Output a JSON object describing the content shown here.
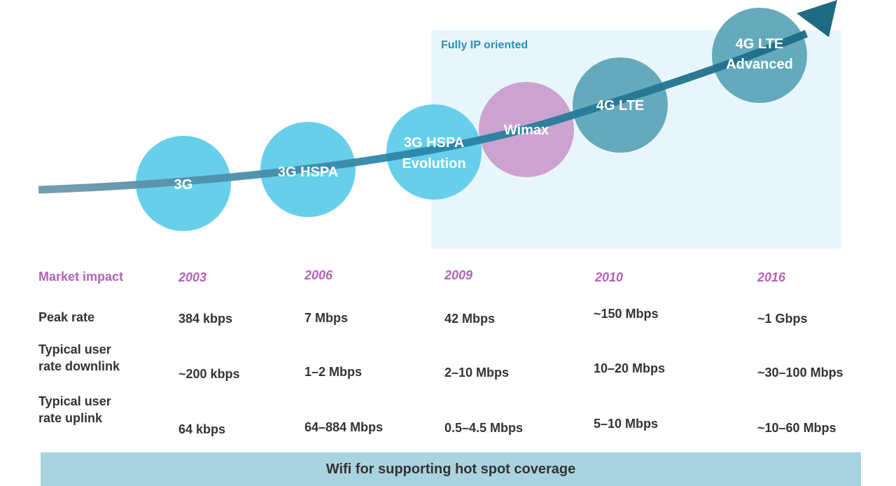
{
  "ip_region": {
    "label": "Fully IP oriented"
  },
  "nodes": [
    {
      "id": "3g",
      "lines": [
        "3G"
      ],
      "color": "#5ccbea"
    },
    {
      "id": "3g-hspa",
      "lines": [
        "3G HSPA"
      ],
      "color": "#5ccbea"
    },
    {
      "id": "3g-hspa-evolution",
      "lines": [
        "3G HSPA",
        "Evolution"
      ],
      "color": "#5ccbea"
    },
    {
      "id": "wimax",
      "lines": [
        "Wimax"
      ],
      "color": "#c99ccc"
    },
    {
      "id": "4g-lte",
      "lines": [
        "4G LTE"
      ],
      "color": "#5aa4b7"
    },
    {
      "id": "4g-lte-advanced",
      "lines": [
        "4G LTE",
        "Advanced"
      ],
      "color": "#5aa4b7"
    }
  ],
  "colors": {
    "arrow": "#2c7088",
    "accent_purple": "#b561b8",
    "ip_region_bg": "#e8f6fc",
    "wifi_bar_bg": "#a9d3de"
  },
  "table": {
    "market_impact_label": "Market impact",
    "years": [
      "2003",
      "2006",
      "2009",
      "2010",
      "2016"
    ],
    "peak_rate": {
      "label": "Peak rate",
      "values": [
        "384 kbps",
        "7 Mbps",
        "42 Mbps",
        "~150 Mbps",
        "~1 Gbps"
      ]
    },
    "downlink": {
      "label_line1": "Typical user",
      "label_line2": "rate downlink",
      "values": [
        "~200 kbps",
        "1–2 Mbps",
        "2–10 Mbps",
        "10–20 Mbps",
        "~30–100 Mbps"
      ]
    },
    "uplink": {
      "label_line1": "Typical user",
      "label_line2": "rate uplink",
      "values": [
        "64 kbps",
        "64–884 Mbps",
        "0.5–4.5 Mbps",
        "5–10 Mbps",
        "~10–60 Mbps"
      ]
    }
  },
  "wifi_bar": {
    "label": "Wifi for supporting hot spot coverage"
  }
}
